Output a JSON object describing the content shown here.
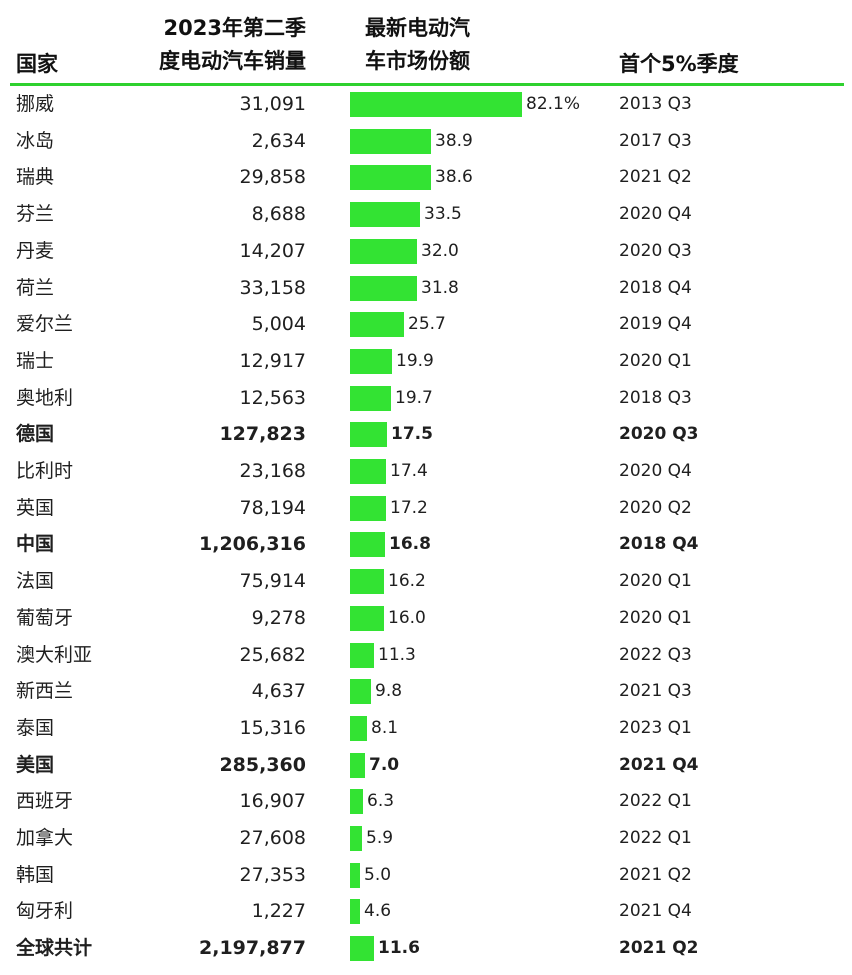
{
  "headers": {
    "country": "国家",
    "sales_line1": "2023年第二季",
    "sales_line2": "度电动汽车销量",
    "share_line1": "最新电动汽",
    "share_line2": "车市场份额",
    "first": "首个5%季度"
  },
  "colors": {
    "bar": "#33e333",
    "rule": "#2fd12f"
  },
  "chart_data": {
    "type": "table",
    "columns": [
      "国家",
      "2023年第二季度电动汽车销量",
      "最新电动汽车市场份额",
      "首个5%季度"
    ],
    "rows": [
      {
        "country": "挪威",
        "sales": "31,091",
        "share": 82.1,
        "share_label": "82.1%",
        "first": "2013 Q3",
        "bold": false
      },
      {
        "country": "冰岛",
        "sales": "2,634",
        "share": 38.9,
        "share_label": "38.9",
        "first": "2017 Q3",
        "bold": false
      },
      {
        "country": "瑞典",
        "sales": "29,858",
        "share": 38.6,
        "share_label": "38.6",
        "first": "2021 Q2",
        "bold": false
      },
      {
        "country": "芬兰",
        "sales": "8,688",
        "share": 33.5,
        "share_label": "33.5",
        "first": "2020 Q4",
        "bold": false
      },
      {
        "country": "丹麦",
        "sales": "14,207",
        "share": 32.0,
        "share_label": "32.0",
        "first": "2020 Q3",
        "bold": false
      },
      {
        "country": "荷兰",
        "sales": "33,158",
        "share": 31.8,
        "share_label": "31.8",
        "first": "2018 Q4",
        "bold": false
      },
      {
        "country": "爱尔兰",
        "sales": "5,004",
        "share": 25.7,
        "share_label": "25.7",
        "first": "2019 Q4",
        "bold": false
      },
      {
        "country": "瑞士",
        "sales": "12,917",
        "share": 19.9,
        "share_label": "19.9",
        "first": "2020 Q1",
        "bold": false
      },
      {
        "country": "奥地利",
        "sales": "12,563",
        "share": 19.7,
        "share_label": "19.7",
        "first": "2018 Q3",
        "bold": false
      },
      {
        "country": "德国",
        "sales": "127,823",
        "share": 17.5,
        "share_label": "17.5",
        "first": "2020 Q3",
        "bold": true
      },
      {
        "country": "比利时",
        "sales": "23,168",
        "share": 17.4,
        "share_label": "17.4",
        "first": "2020 Q4",
        "bold": false
      },
      {
        "country": "英国",
        "sales": "78,194",
        "share": 17.2,
        "share_label": "17.2",
        "first": "2020 Q2",
        "bold": false
      },
      {
        "country": "中国",
        "sales": "1,206,316",
        "share": 16.8,
        "share_label": "16.8",
        "first": "2018 Q4",
        "bold": true
      },
      {
        "country": "法国",
        "sales": "75,914",
        "share": 16.2,
        "share_label": "16.2",
        "first": "2020 Q1",
        "bold": false
      },
      {
        "country": "葡萄牙",
        "sales": "9,278",
        "share": 16.0,
        "share_label": "16.0",
        "first": "2020 Q1",
        "bold": false
      },
      {
        "country": "澳大利亚",
        "sales": "25,682",
        "share": 11.3,
        "share_label": "11.3",
        "first": "2022 Q3",
        "bold": false
      },
      {
        "country": "新西兰",
        "sales": "4,637",
        "share": 9.8,
        "share_label": "9.8",
        "first": "2021 Q3",
        "bold": false
      },
      {
        "country": "泰国",
        "sales": "15,316",
        "share": 8.1,
        "share_label": "8.1",
        "first": "2023 Q1",
        "bold": false
      },
      {
        "country": "美国",
        "sales": "285,360",
        "share": 7.0,
        "share_label": "7.0",
        "first": "2021 Q4",
        "bold": true
      },
      {
        "country": "西班牙",
        "sales": "16,907",
        "share": 6.3,
        "share_label": "6.3",
        "first": "2022 Q1",
        "bold": false
      },
      {
        "country": "加拿大",
        "sales": "27,608",
        "share": 5.9,
        "share_label": "5.9",
        "first": "2022 Q1",
        "bold": false
      },
      {
        "country": "韩国",
        "sales": "27,353",
        "share": 5.0,
        "share_label": "5.0",
        "first": "2021 Q2",
        "bold": false
      },
      {
        "country": "匈牙利",
        "sales": "1,227",
        "share": 4.6,
        "share_label": "4.6",
        "first": "2021 Q4",
        "bold": false
      },
      {
        "country": "全球共计",
        "sales": "2,197,877",
        "share": 11.6,
        "share_label": "11.6",
        "first": "2021 Q2",
        "bold": true
      }
    ]
  }
}
